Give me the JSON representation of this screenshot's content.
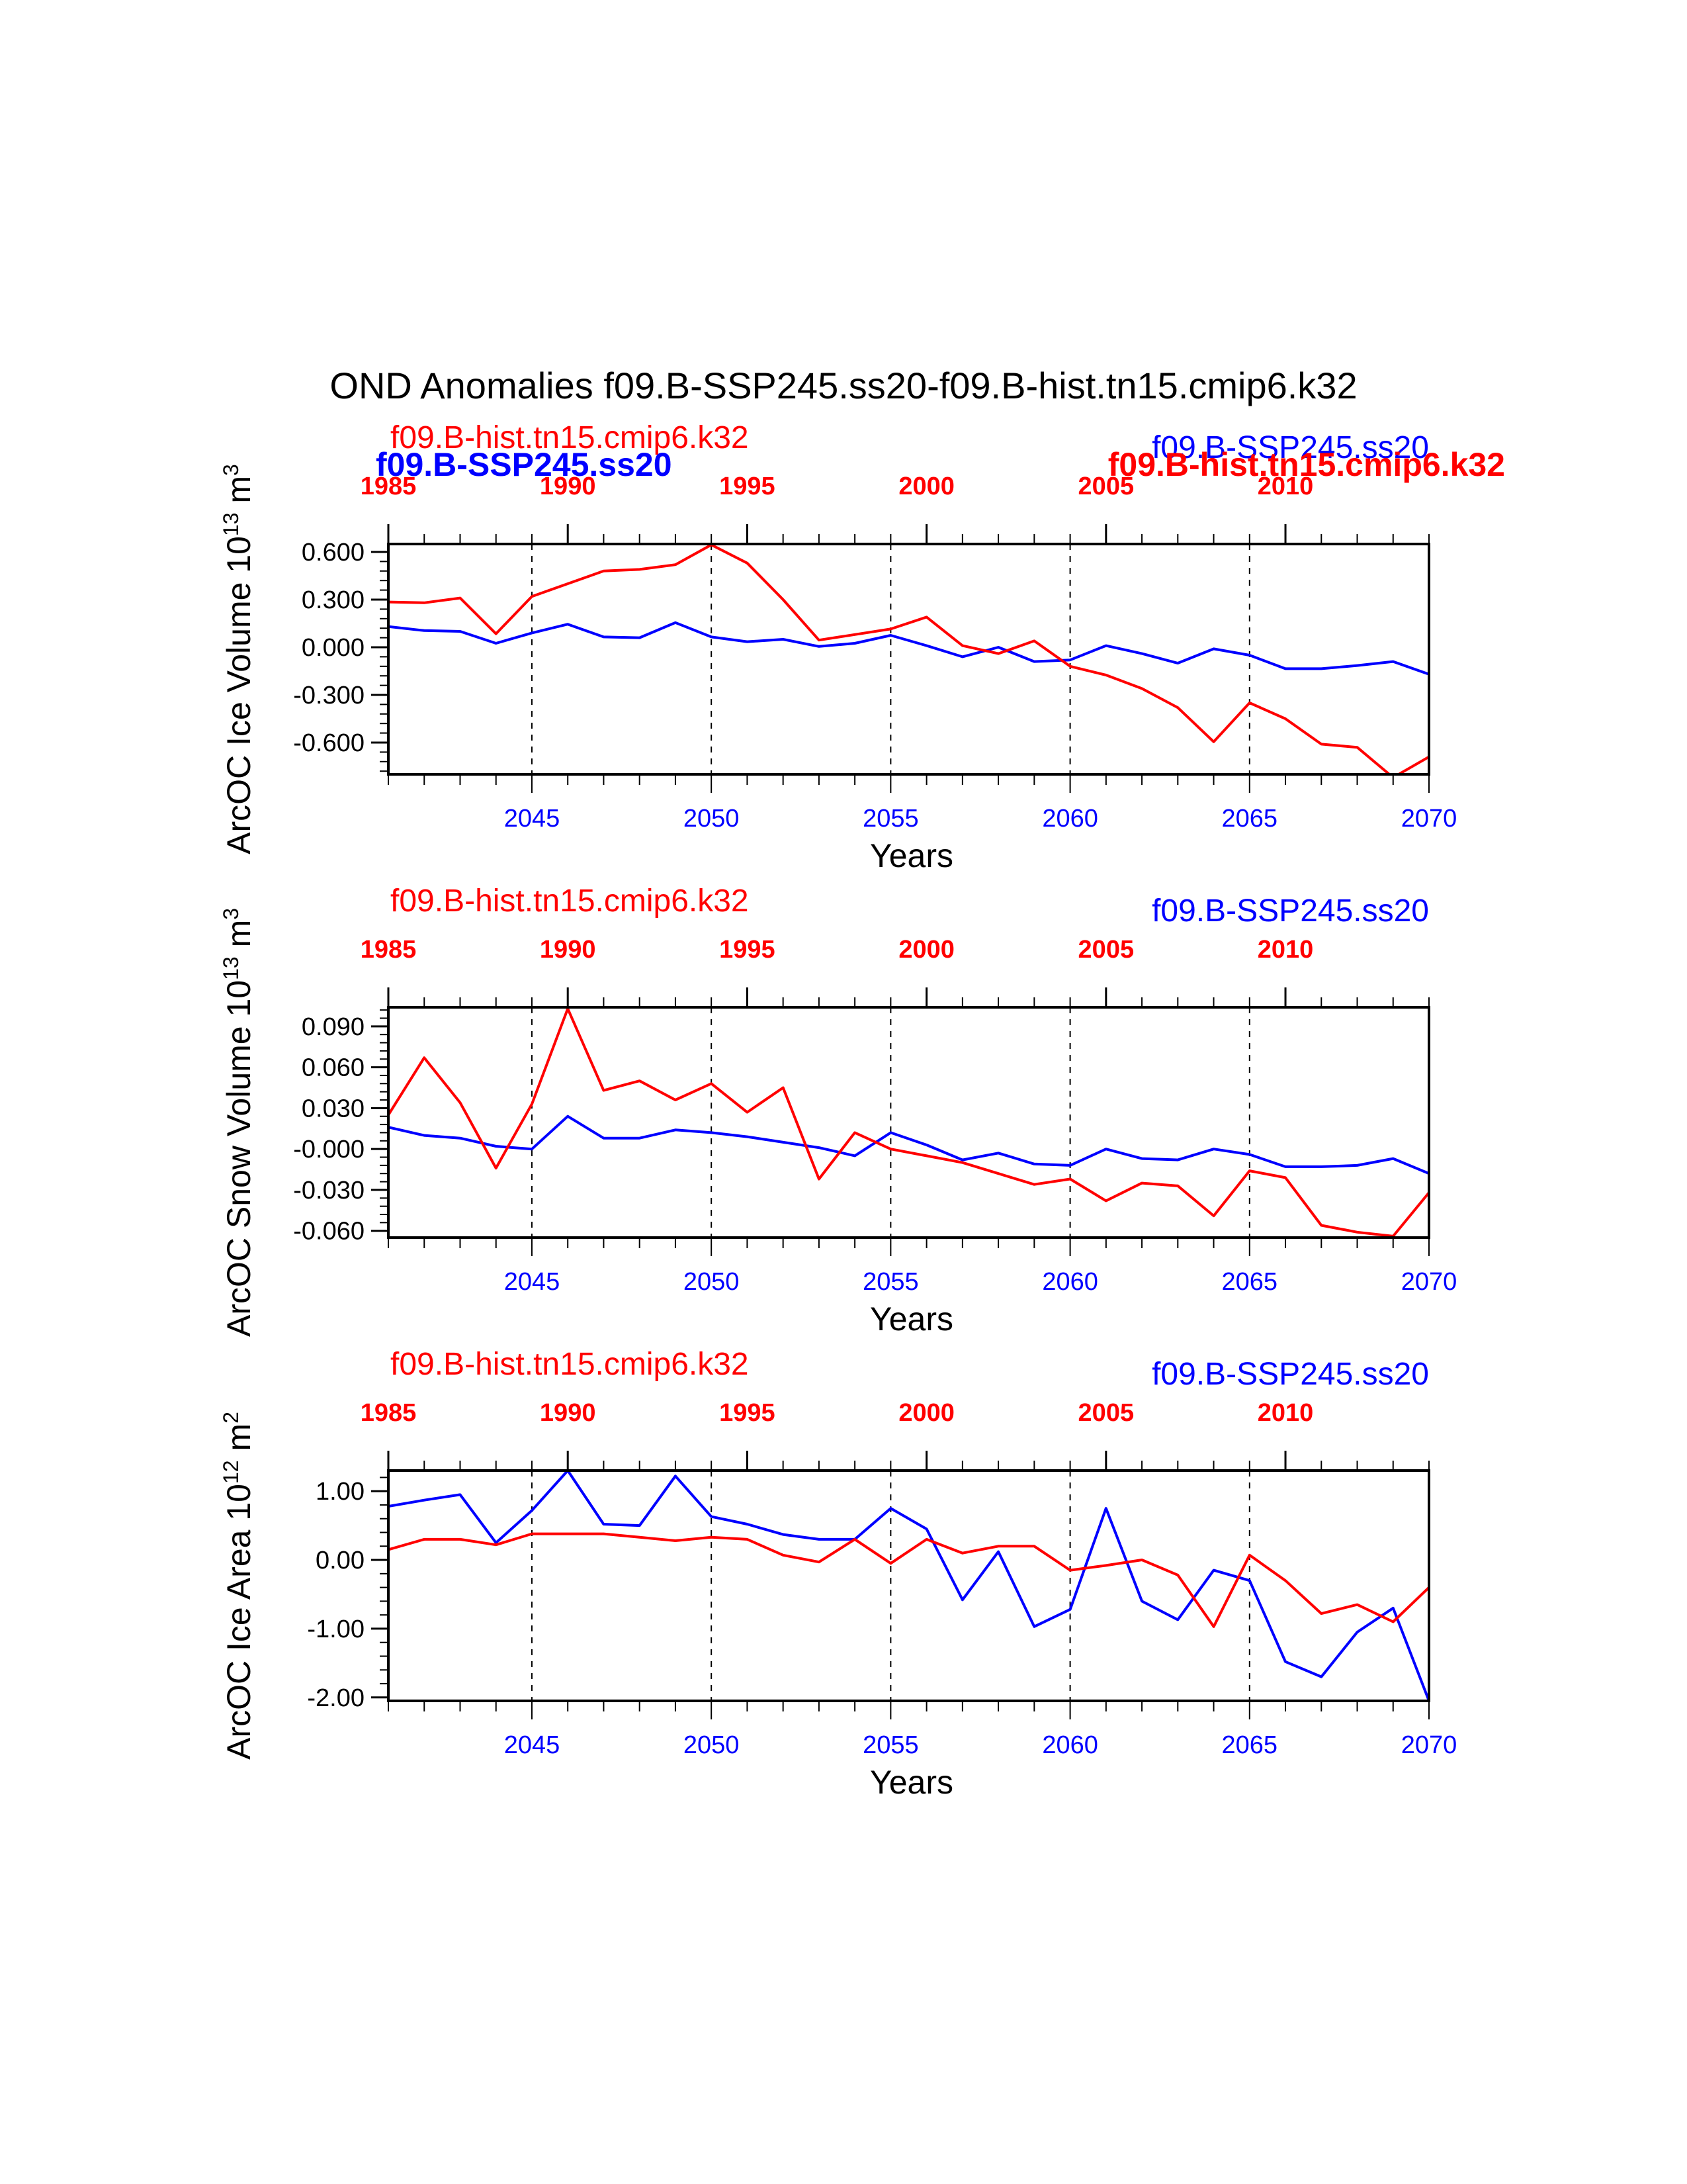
{
  "title": "OND Anomalies f09.B-SSP245.ss20-f09.B-hist.tn15.cmip6.k32",
  "colors": {
    "ssp": "#0000ff",
    "hist": "#ff0000",
    "axis": "#000000"
  },
  "chart_data": [
    {
      "type": "line",
      "ylabel": "ArcOC Ice Volume 10^13 m^3",
      "xlabel": "Years",
      "bottom_label": "f09.B-SSP245.ss20",
      "top_label": "f09.B-hist.tn15.cmip6.k32",
      "overlay_labels": [
        "f09.B-SSP245.ss20",
        "f09.B-hist.tn15.cmip6.k32",
        "f09.B-SSP245.ss20",
        "f09.B-hist.tn15.cmip6.k32"
      ],
      "xlim": [
        2041,
        2070
      ],
      "ylim": [
        -0.8,
        0.65
      ],
      "yticks": [
        0.6,
        0.3,
        0.0,
        -0.3,
        -0.6
      ],
      "ytick_labels": [
        "0.600",
        "0.300",
        "0.000",
        "-0.300",
        "-0.600"
      ],
      "ssp_xticks": [
        2045,
        2050,
        2055,
        2060,
        2065,
        2070
      ],
      "hist_xticks": [
        1985,
        1990,
        1995,
        2000,
        2005,
        2010
      ],
      "series": [
        {
          "name": "f09.B-SSP245.ss20",
          "color": "#0000ff",
          "x": [
            2041,
            2042,
            2043,
            2044,
            2045,
            2046,
            2047,
            2048,
            2049,
            2050,
            2051,
            2052,
            2053,
            2054,
            2055,
            2056,
            2057,
            2058,
            2059,
            2060,
            2061,
            2062,
            2063,
            2064,
            2065,
            2066,
            2067,
            2068,
            2069,
            2070
          ],
          "values": [
            0.13,
            0.105,
            0.1,
            0.025,
            0.09,
            0.145,
            0.065,
            0.06,
            0.155,
            0.065,
            0.035,
            0.05,
            0.005,
            0.025,
            0.075,
            0.01,
            -0.06,
            0.0,
            -0.09,
            -0.08,
            0.01,
            -0.04,
            -0.1,
            -0.01,
            -0.05,
            -0.135,
            -0.135,
            -0.115,
            -0.09,
            -0.17
          ]
        },
        {
          "name": "f09.B-hist.tn15.cmip6.k32",
          "color": "#ff0000",
          "x": [
            2041,
            2042,
            2043,
            2044,
            2045,
            2046,
            2047,
            2048,
            2049,
            2050,
            2051,
            2052,
            2053,
            2054,
            2055,
            2056,
            2057,
            2058,
            2059,
            2060,
            2061,
            2062,
            2063,
            2064,
            2065,
            2066,
            2067,
            2068,
            2069,
            2070
          ],
          "values": [
            0.285,
            0.28,
            0.31,
            0.085,
            0.32,
            0.4,
            0.48,
            0.49,
            0.52,
            0.645,
            0.53,
            0.3,
            0.045,
            0.08,
            0.115,
            0.19,
            0.01,
            -0.04,
            0.04,
            -0.12,
            -0.175,
            -0.26,
            -0.38,
            -0.595,
            -0.35,
            -0.45,
            -0.61,
            -0.63,
            -0.82,
            -0.69
          ]
        }
      ]
    },
    {
      "type": "line",
      "ylabel": "ArcOC Snow Volume 10^13 m^3",
      "xlabel": "Years",
      "bottom_label": "f09.B-SSP245.ss20",
      "top_label": "f09.B-hist.tn15.cmip6.k32",
      "xlim": [
        2041,
        2070
      ],
      "ylim": [
        -0.065,
        0.104
      ],
      "yticks": [
        0.09,
        0.06,
        0.03,
        0.0,
        -0.03,
        -0.06
      ],
      "ytick_labels": [
        "0.090",
        "0.060",
        "0.030",
        "-0.000",
        "-0.030",
        "-0.060"
      ],
      "ssp_xticks": [
        2045,
        2050,
        2055,
        2060,
        2065,
        2070
      ],
      "hist_xticks": [
        1985,
        1990,
        1995,
        2000,
        2005,
        2010
      ],
      "series": [
        {
          "name": "f09.B-SSP245.ss20",
          "color": "#0000ff",
          "x": [
            2041,
            2042,
            2043,
            2044,
            2045,
            2046,
            2047,
            2048,
            2049,
            2050,
            2051,
            2052,
            2053,
            2054,
            2055,
            2056,
            2057,
            2058,
            2059,
            2060,
            2061,
            2062,
            2063,
            2064,
            2065,
            2066,
            2067,
            2068,
            2069,
            2070
          ],
          "values": [
            0.016,
            0.01,
            0.008,
            0.002,
            0.0,
            0.024,
            0.008,
            0.008,
            0.014,
            0.012,
            0.009,
            0.005,
            0.001,
            -0.005,
            0.012,
            0.003,
            -0.008,
            -0.003,
            -0.011,
            -0.012,
            0.0,
            -0.007,
            -0.008,
            0.0,
            -0.004,
            -0.013,
            -0.013,
            -0.012,
            -0.007,
            -0.018
          ]
        },
        {
          "name": "f09.B-hist.tn15.cmip6.k32",
          "color": "#ff0000",
          "x": [
            2041,
            2042,
            2043,
            2044,
            2045,
            2046,
            2047,
            2048,
            2049,
            2050,
            2051,
            2052,
            2053,
            2054,
            2055,
            2056,
            2057,
            2058,
            2059,
            2060,
            2061,
            2062,
            2063,
            2064,
            2065,
            2066,
            2067,
            2068,
            2069,
            2070
          ],
          "values": [
            0.025,
            0.067,
            0.034,
            -0.014,
            0.033,
            0.103,
            0.043,
            0.05,
            0.036,
            0.048,
            0.027,
            0.045,
            -0.022,
            0.012,
            0.0,
            -0.005,
            -0.01,
            -0.018,
            -0.026,
            -0.022,
            -0.038,
            -0.025,
            -0.027,
            -0.049,
            -0.016,
            -0.021,
            -0.056,
            -0.061,
            -0.064,
            -0.032
          ]
        }
      ]
    },
    {
      "type": "line",
      "ylabel": "ArcOC Ice Area 10^12 m^2",
      "xlabel": "Years",
      "bottom_label": "f09.B-SSP245.ss20",
      "top_label": "f09.B-hist.tn15.cmip6.k32",
      "xlim": [
        2041,
        2070
      ],
      "ylim": [
        -2.05,
        1.3
      ],
      "yticks": [
        1.0,
        0.0,
        -1.0,
        -2.0
      ],
      "ytick_labels": [
        "1.00",
        "0.00",
        "-1.00",
        "-2.00"
      ],
      "ssp_xticks": [
        2045,
        2050,
        2055,
        2060,
        2065,
        2070
      ],
      "hist_xticks": [
        1985,
        1990,
        1995,
        2000,
        2005,
        2010
      ],
      "series": [
        {
          "name": "f09.B-SSP245.ss20",
          "color": "#0000ff",
          "x": [
            2041,
            2042,
            2043,
            2044,
            2045,
            2046,
            2047,
            2048,
            2049,
            2050,
            2051,
            2052,
            2053,
            2054,
            2055,
            2056,
            2057,
            2058,
            2059,
            2060,
            2061,
            2062,
            2063,
            2064,
            2065,
            2066,
            2067,
            2068,
            2069,
            2070
          ],
          "values": [
            0.78,
            0.87,
            0.95,
            0.25,
            0.72,
            1.3,
            0.52,
            0.5,
            1.22,
            0.63,
            0.52,
            0.37,
            0.3,
            0.3,
            0.75,
            0.45,
            -0.58,
            0.12,
            -0.97,
            -0.72,
            0.75,
            -0.6,
            -0.87,
            -0.15,
            -0.3,
            -1.48,
            -1.7,
            -1.05,
            -0.7,
            -2.05
          ]
        },
        {
          "name": "f09.B-hist.tn15.cmip6.k32",
          "color": "#ff0000",
          "x": [
            2041,
            2042,
            2043,
            2044,
            2045,
            2046,
            2047,
            2048,
            2049,
            2050,
            2051,
            2052,
            2053,
            2054,
            2055,
            2056,
            2057,
            2058,
            2059,
            2060,
            2061,
            2062,
            2063,
            2064,
            2065,
            2066,
            2067,
            2068,
            2069,
            2070
          ],
          "values": [
            0.15,
            0.3,
            0.3,
            0.22,
            0.38,
            0.38,
            0.38,
            0.33,
            0.28,
            0.33,
            0.3,
            0.07,
            -0.03,
            0.3,
            -0.05,
            0.3,
            0.1,
            0.2,
            0.2,
            -0.15,
            -0.08,
            0.0,
            -0.22,
            -0.97,
            0.07,
            -0.3,
            -0.78,
            -0.65,
            -0.9,
            -0.4
          ]
        }
      ]
    }
  ]
}
